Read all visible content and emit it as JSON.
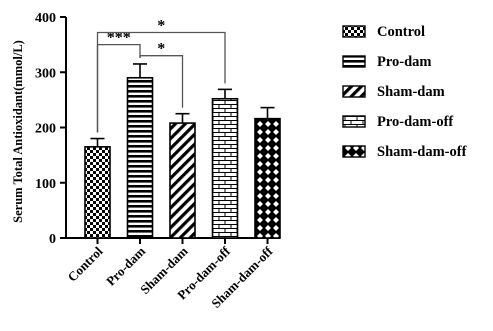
{
  "chart_data": {
    "type": "bar",
    "title": "",
    "xlabel": "",
    "ylabel": "Serum Total Antioxidant(mmol/L)",
    "ylim": [
      0,
      400
    ],
    "yticks": [
      "0",
      "100",
      "200",
      "300",
      "400"
    ],
    "yticks_values": [
      0,
      100,
      200,
      300,
      400
    ],
    "categories": [
      "Control",
      "Pro-dam",
      "Sham-dam",
      "Pro-dam-off",
      "Sham-dam-off"
    ],
    "values": [
      165,
      290,
      208,
      252,
      216
    ],
    "errors": [
      15,
      25,
      17,
      17,
      20
    ],
    "error_bar": "mean ± SE, upper cap only",
    "patterns": [
      "checker",
      "horizontal-lines",
      "diagonal-lines",
      "brick",
      "diamond-lattice"
    ],
    "legend": {
      "position": "right",
      "entries": [
        "Control",
        "Pro-dam",
        "Sham-dam",
        "Pro-dam-off",
        "Sham-dam-off"
      ]
    },
    "grid": false,
    "significance": [
      {
        "from": "Control",
        "to": "Pro-dam",
        "label": "***"
      },
      {
        "from": "Pro-dam",
        "to": "Sham-dam",
        "label": "*"
      },
      {
        "from": "Control",
        "to": "Pro-dam-off",
        "label": "*"
      }
    ]
  }
}
